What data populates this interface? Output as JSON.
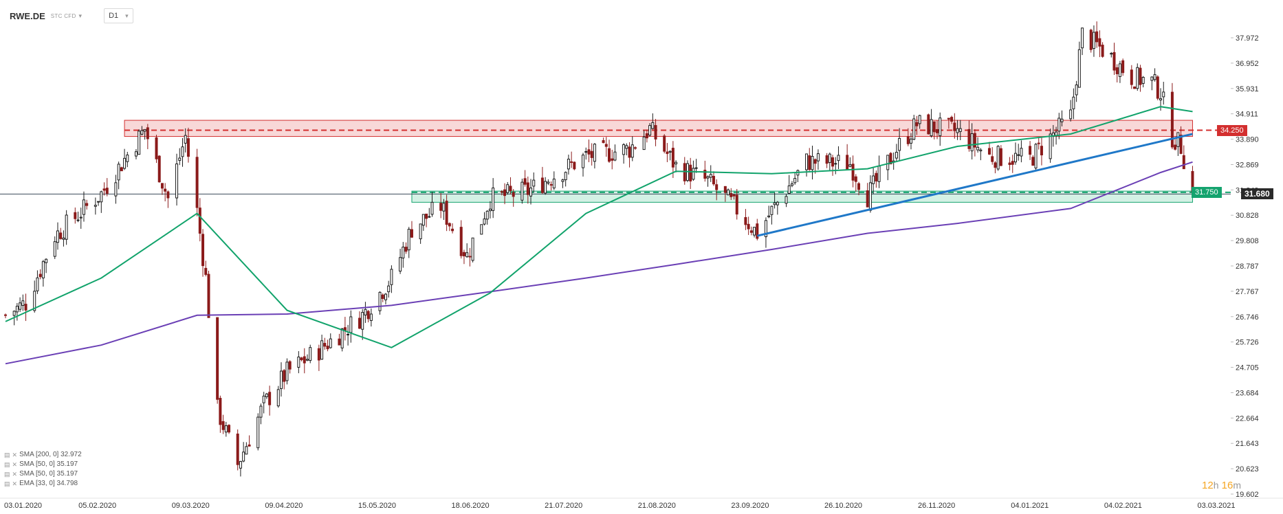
{
  "header": {
    "symbol": "RWE.DE",
    "symbol_type": "STC CFD",
    "timeframe": "D1"
  },
  "price_axis": {
    "ticks": [
      "37.972",
      "36.952",
      "35.931",
      "34.911",
      "33.890",
      "32.869",
      "31.849",
      "30.828",
      "29.808",
      "28.787",
      "27.767",
      "26.746",
      "25.726",
      "24.705",
      "23.684",
      "22.664",
      "21.643",
      "20.623",
      "19.602"
    ]
  },
  "date_axis": {
    "labels": [
      "03.01.2020",
      "05.02.2020",
      "09.03.2020",
      "09.04.2020",
      "15.05.2020",
      "18.06.2020",
      "21.07.2020",
      "21.08.2020",
      "23.09.2020",
      "26.10.2020",
      "26.11.2020",
      "04.01.2021",
      "04.02.2021",
      "03.03.2021"
    ]
  },
  "price_tags": {
    "resistance": "34.250",
    "support": "31.750",
    "current": "31.680"
  },
  "legend": [
    "SMA [200, 0] 32.972",
    "SMA [50, 0] 35.197",
    "SMA [50, 0] 35.197",
    "EMA [33, 0] 34.798"
  ],
  "timer": {
    "hours": "12",
    "hours_unit": "h",
    "minutes": "16",
    "minutes_unit": "m"
  },
  "colors": {
    "up": "#1b1b1b",
    "down": "#8b1a1a",
    "sma200": "#6a3fb5",
    "sma50": "#11a36b",
    "trendline": "#1f78c8",
    "resistance": "#d32f2f",
    "support": "#14a36e"
  },
  "chart_data": {
    "type": "candlestick",
    "symbol": "RWE.DE",
    "timeframe": "D1",
    "ylim": [
      19.602,
      38.5
    ],
    "x_range": [
      "2020-01-03",
      "2021-03-03"
    ],
    "resistance_level": 34.25,
    "support_level": 31.75,
    "last_price": 31.68,
    "resistance_zone": {
      "from": "2020-02-13",
      "to": "2021-02-15",
      "low": 34.0,
      "high": 34.65
    },
    "support_zone": {
      "from": "2020-05-22",
      "to": "2021-02-15",
      "low": 31.35,
      "high": 31.8
    },
    "trendline": [
      {
        "date": "2020-09-18",
        "value": 30.0
      },
      {
        "date": "2021-02-15",
        "value": 34.1
      }
    ],
    "sma50_path": [
      {
        "date": "2020-01-03",
        "value": 26.55
      },
      {
        "date": "2020-02-05",
        "value": 28.3
      },
      {
        "date": "2020-03-09",
        "value": 30.9
      },
      {
        "date": "2020-04-09",
        "value": 27.0
      },
      {
        "date": "2020-05-15",
        "value": 25.5
      },
      {
        "date": "2020-06-18",
        "value": 27.7
      },
      {
        "date": "2020-07-21",
        "value": 30.9
      },
      {
        "date": "2020-08-21",
        "value": 32.6
      },
      {
        "date": "2020-09-23",
        "value": 32.5
      },
      {
        "date": "2020-10-26",
        "value": 32.7
      },
      {
        "date": "2020-11-26",
        "value": 33.6
      },
      {
        "date": "2021-01-04",
        "value": 34.1
      },
      {
        "date": "2021-02-04",
        "value": 35.2
      },
      {
        "date": "2021-02-15",
        "value": 35.0
      }
    ],
    "sma200_path": [
      {
        "date": "2020-01-03",
        "value": 24.85
      },
      {
        "date": "2020-02-05",
        "value": 25.6
      },
      {
        "date": "2020-03-09",
        "value": 26.8
      },
      {
        "date": "2020-04-09",
        "value": 26.85
      },
      {
        "date": "2020-05-15",
        "value": 27.2
      },
      {
        "date": "2020-06-18",
        "value": 27.75
      },
      {
        "date": "2020-07-21",
        "value": 28.3
      },
      {
        "date": "2020-08-21",
        "value": 28.85
      },
      {
        "date": "2020-09-23",
        "value": 29.45
      },
      {
        "date": "2020-10-26",
        "value": 30.1
      },
      {
        "date": "2020-11-26",
        "value": 30.5
      },
      {
        "date": "2021-01-04",
        "value": 31.1
      },
      {
        "date": "2021-02-04",
        "value": 32.55
      },
      {
        "date": "2021-02-15",
        "value": 32.97
      }
    ],
    "price_anchors": [
      {
        "date": "2020-01-03",
        "close": 26.8
      },
      {
        "date": "2020-01-10",
        "close": 27.3
      },
      {
        "date": "2020-01-20",
        "close": 30.0
      },
      {
        "date": "2020-02-05",
        "close": 31.7
      },
      {
        "date": "2020-02-20",
        "close": 34.3
      },
      {
        "date": "2020-02-28",
        "close": 31.5
      },
      {
        "date": "2020-03-05",
        "close": 34.0
      },
      {
        "date": "2020-03-09",
        "close": 31.0
      },
      {
        "date": "2020-03-12",
        "close": 28.3
      },
      {
        "date": "2020-03-16",
        "close": 23.0
      },
      {
        "date": "2020-03-23",
        "close": 20.8
      },
      {
        "date": "2020-04-01",
        "close": 23.2
      },
      {
        "date": "2020-04-09",
        "close": 24.5
      },
      {
        "date": "2020-04-20",
        "close": 25.4
      },
      {
        "date": "2020-05-05",
        "close": 26.8
      },
      {
        "date": "2020-05-15",
        "close": 28.3
      },
      {
        "date": "2020-05-22",
        "close": 30.3
      },
      {
        "date": "2020-06-01",
        "close": 31.2
      },
      {
        "date": "2020-06-10",
        "close": 29.2
      },
      {
        "date": "2020-06-18",
        "close": 31.5
      },
      {
        "date": "2020-07-01",
        "close": 31.8
      },
      {
        "date": "2020-07-21",
        "close": 33.2
      },
      {
        "date": "2020-08-05",
        "close": 33.5
      },
      {
        "date": "2020-08-12",
        "close": 34.3
      },
      {
        "date": "2020-08-21",
        "close": 32.8
      },
      {
        "date": "2020-09-01",
        "close": 32.2
      },
      {
        "date": "2020-09-10",
        "close": 31.2
      },
      {
        "date": "2020-09-18",
        "close": 30.1
      },
      {
        "date": "2020-09-23",
        "close": 31.0
      },
      {
        "date": "2020-10-05",
        "close": 33.0
      },
      {
        "date": "2020-10-20",
        "close": 32.9
      },
      {
        "date": "2020-10-26",
        "close": 31.6
      },
      {
        "date": "2020-11-05",
        "close": 33.5
      },
      {
        "date": "2020-11-12",
        "close": 34.5
      },
      {
        "date": "2020-11-26",
        "close": 34.2
      },
      {
        "date": "2020-12-07",
        "close": 33.2
      },
      {
        "date": "2020-12-21",
        "close": 33.1
      },
      {
        "date": "2021-01-04",
        "close": 34.8
      },
      {
        "date": "2021-01-08",
        "close": 38.1
      },
      {
        "date": "2021-01-15",
        "close": 37.5
      },
      {
        "date": "2021-01-25",
        "close": 36.4
      },
      {
        "date": "2021-02-01",
        "close": 36.2
      },
      {
        "date": "2021-02-04",
        "close": 35.8
      },
      {
        "date": "2021-02-08",
        "close": 34.0
      },
      {
        "date": "2021-02-11",
        "close": 33.6
      },
      {
        "date": "2021-02-15",
        "close": 31.68
      }
    ]
  }
}
